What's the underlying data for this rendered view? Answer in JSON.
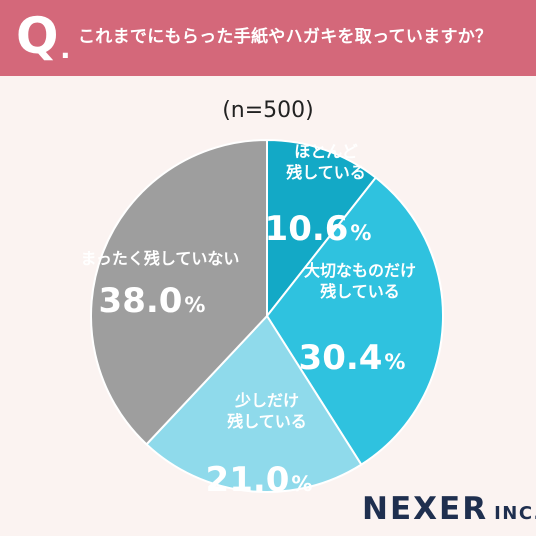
{
  "header": {
    "q_letter": "Q",
    "q_dot": ".",
    "question": "これまでにもらった手紙やハガキを取っていますか？"
  },
  "logo": {
    "main": "NEXER",
    "sub": "INC."
  },
  "colors": {
    "banner": "#d4687a",
    "background": "#fbf3f1",
    "slice1": "#13a9c6",
    "slice2": "#2fc2df",
    "slice3": "#8fdaeb",
    "slice4": "#9e9e9e"
  },
  "chart_data": {
    "type": "pie",
    "subtitle": "(n=500)",
    "unit": "%",
    "slices": [
      {
        "label_lines": [
          "ほとんど",
          "残している"
        ],
        "value": 10.6,
        "value_text": "10.6"
      },
      {
        "label_lines": [
          "大切なものだけ",
          "残している"
        ],
        "value": 30.4,
        "value_text": "30.4"
      },
      {
        "label_lines": [
          "少しだけ",
          "残している"
        ],
        "value": 21.0,
        "value_text": "21.0"
      },
      {
        "label_lines": [
          "まったく残していない"
        ],
        "value": 38.0,
        "value_text": "38.0"
      }
    ]
  }
}
